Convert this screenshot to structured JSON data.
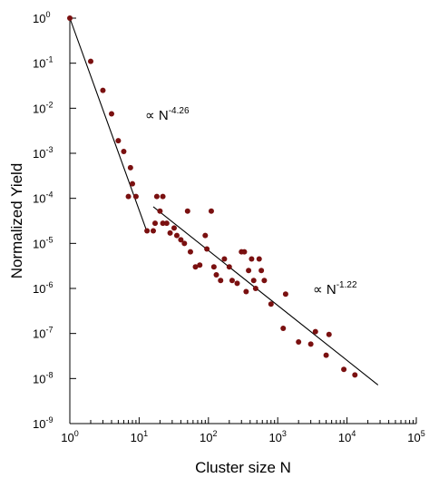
{
  "chart_data": {
    "type": "scatter",
    "xlabel": "Cluster size N",
    "ylabel": "Normalized Yield",
    "x_scale": "log",
    "y_scale": "log",
    "xlim": [
      1,
      100000
    ],
    "ylim": [
      1e-09,
      1
    ],
    "x_ticks": [
      {
        "base": "10",
        "exp": "0",
        "value": 1
      },
      {
        "base": "10",
        "exp": "1",
        "value": 10
      },
      {
        "base": "10",
        "exp": "2",
        "value": 100
      },
      {
        "base": "10",
        "exp": "3",
        "value": 1000
      },
      {
        "base": "10",
        "exp": "4",
        "value": 10000
      },
      {
        "base": "10",
        "exp": "5",
        "value": 100000
      }
    ],
    "y_ticks": [
      {
        "base": "10",
        "exp": "0",
        "value": 1
      },
      {
        "base": "10",
        "exp": "-1",
        "value": 0.1
      },
      {
        "base": "10",
        "exp": "-2",
        "value": 0.01
      },
      {
        "base": "10",
        "exp": "-3",
        "value": 0.001
      },
      {
        "base": "10",
        "exp": "-4",
        "value": 0.0001
      },
      {
        "base": "10",
        "exp": "-5",
        "value": 1e-05
      },
      {
        "base": "10",
        "exp": "-6",
        "value": 1e-06
      },
      {
        "base": "10",
        "exp": "-7",
        "value": 1e-07
      },
      {
        "base": "10",
        "exp": "-8",
        "value": 1e-08
      },
      {
        "base": "10",
        "exp": "-9",
        "value": 1e-09
      }
    ],
    "grid": false,
    "marker_color": "#7a1010",
    "points": [
      [
        1,
        1.0
      ],
      [
        2,
        0.11
      ],
      [
        3,
        0.025
      ],
      [
        4,
        0.0075
      ],
      [
        5,
        0.0019
      ],
      [
        6,
        0.0011
      ],
      [
        7,
        0.00011
      ],
      [
        7.5,
        0.00048
      ],
      [
        8,
        0.00021
      ],
      [
        9,
        0.00011
      ],
      [
        13,
        1.9e-05
      ],
      [
        16,
        1.9e-05
      ],
      [
        17,
        2.8e-05
      ],
      [
        18,
        0.00011
      ],
      [
        20,
        5.2e-05
      ],
      [
        22,
        0.00011
      ],
      [
        22,
        2.8e-05
      ],
      [
        25,
        2.8e-05
      ],
      [
        28,
        1.7e-05
      ],
      [
        32,
        2.2e-05
      ],
      [
        35,
        1.5e-05
      ],
      [
        40,
        1.2e-05
      ],
      [
        45,
        1e-05
      ],
      [
        50,
        5.2e-05
      ],
      [
        55,
        6.5e-06
      ],
      [
        65,
        3e-06
      ],
      [
        75,
        3.3e-06
      ],
      [
        90,
        1.5e-05
      ],
      [
        95,
        7.5e-06
      ],
      [
        110,
        5.2e-05
      ],
      [
        120,
        3e-06
      ],
      [
        130,
        2e-06
      ],
      [
        150,
        1.5e-06
      ],
      [
        170,
        4.5e-06
      ],
      [
        200,
        3e-06
      ],
      [
        220,
        1.5e-06
      ],
      [
        260,
        1.3e-06
      ],
      [
        300,
        6.5e-06
      ],
      [
        330,
        6.5e-06
      ],
      [
        350,
        8.5e-07
      ],
      [
        380,
        2.5e-06
      ],
      [
        420,
        4.5e-06
      ],
      [
        450,
        1.5e-06
      ],
      [
        480,
        1e-06
      ],
      [
        540,
        4.5e-06
      ],
      [
        580,
        2.5e-06
      ],
      [
        640,
        1.5e-06
      ],
      [
        800,
        4.5e-07
      ],
      [
        1200,
        1.3e-07
      ],
      [
        1300,
        7.5e-07
      ],
      [
        2000,
        6.5e-08
      ],
      [
        3000,
        5.8e-08
      ],
      [
        3500,
        1.1e-07
      ],
      [
        5000,
        3.3e-08
      ],
      [
        5500,
        9.5e-08
      ],
      [
        9000,
        1.6e-08
      ],
      [
        13000,
        1.2e-08
      ]
    ],
    "fits": [
      {
        "label_base": "∝ N",
        "label_exp": "-4.26",
        "segment": [
          [
            1,
            1.0
          ],
          [
            13,
            1.8e-05
          ]
        ]
      },
      {
        "label_base": "∝ N",
        "label_exp": "-1.22",
        "segment": [
          [
            16,
            6.5e-05
          ],
          [
            28000,
            7.2e-09
          ]
        ]
      }
    ]
  }
}
